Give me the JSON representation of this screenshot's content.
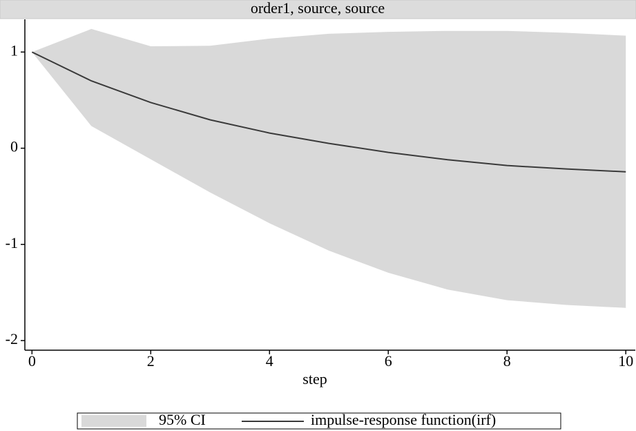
{
  "chart_data": {
    "type": "irf",
    "title": "order1, source, source",
    "xlabel": "step",
    "x": [
      0,
      1,
      2,
      3,
      4,
      5,
      6,
      7,
      8,
      9,
      10
    ],
    "series": [
      {
        "name": "95% CI",
        "color": "#d9d9d9",
        "lower": [
          1,
          0.23,
          -0.115,
          -0.46,
          -0.78,
          -1.065,
          -1.295,
          -1.47,
          -1.58,
          -1.63,
          -1.66
        ],
        "upper": [
          1,
          1.24,
          1.06,
          1.065,
          1.14,
          1.19,
          1.21,
          1.22,
          1.22,
          1.2,
          1.17
        ]
      },
      {
        "name": "impulse-response function(irf)",
        "color": "#3a3a3a",
        "values": [
          1,
          0.7,
          0.475,
          0.295,
          0.158,
          0.05,
          -0.043,
          -0.12,
          -0.18,
          -0.216,
          -0.245
        ]
      }
    ],
    "xlim": [
      -0.12,
      10.16
    ],
    "xticks": [
      0,
      2,
      4,
      6,
      8,
      10
    ],
    "ylim": [
      -2.1,
      1.34
    ],
    "yticks": [
      -2,
      -1,
      0,
      1
    ]
  }
}
